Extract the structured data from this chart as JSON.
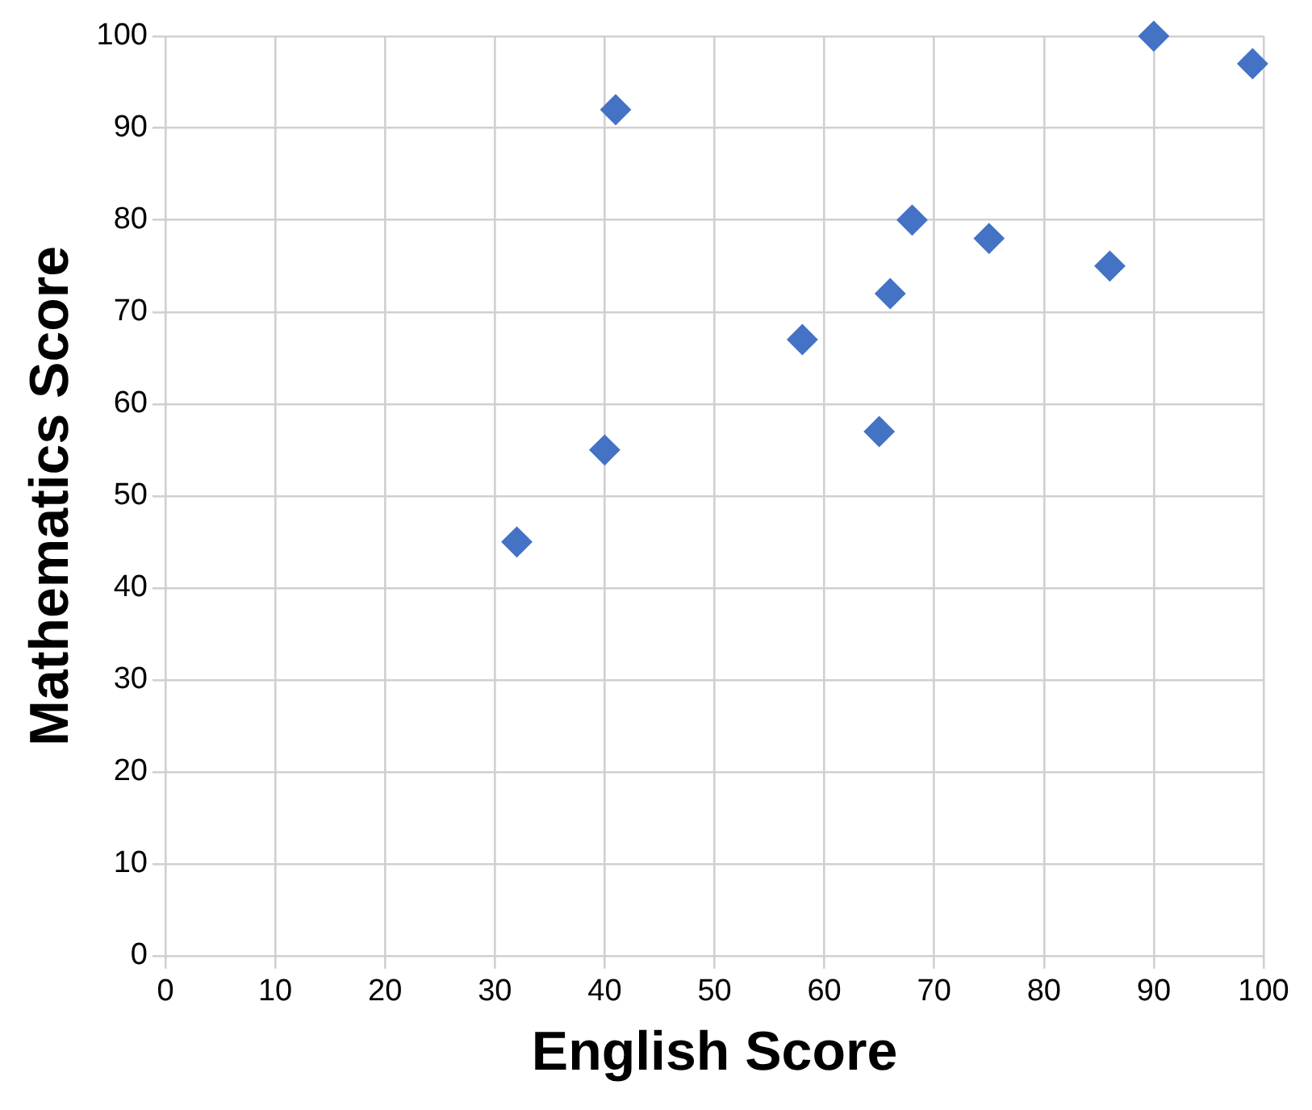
{
  "chart_data": {
    "type": "scatter",
    "xlabel": "English Score",
    "ylabel": "Mathematics Score",
    "x": [
      32,
      40,
      41,
      58,
      65,
      66,
      68,
      75,
      86,
      90,
      99
    ],
    "series": [
      {
        "color": "#4472c4",
        "values": [
          45,
          55,
          92,
          67,
          57,
          72,
          80,
          78,
          75,
          100,
          97
        ]
      }
    ],
    "xlim": [
      0,
      100
    ],
    "xticks": [
      0,
      10,
      20,
      30,
      40,
      50,
      60,
      70,
      80,
      90,
      100
    ],
    "ylim": [
      0,
      100
    ],
    "yticks": [
      0,
      10,
      20,
      30,
      40,
      50,
      60,
      70,
      80,
      90,
      100
    ],
    "grid": true,
    "marker": "diamond",
    "legend": false
  }
}
